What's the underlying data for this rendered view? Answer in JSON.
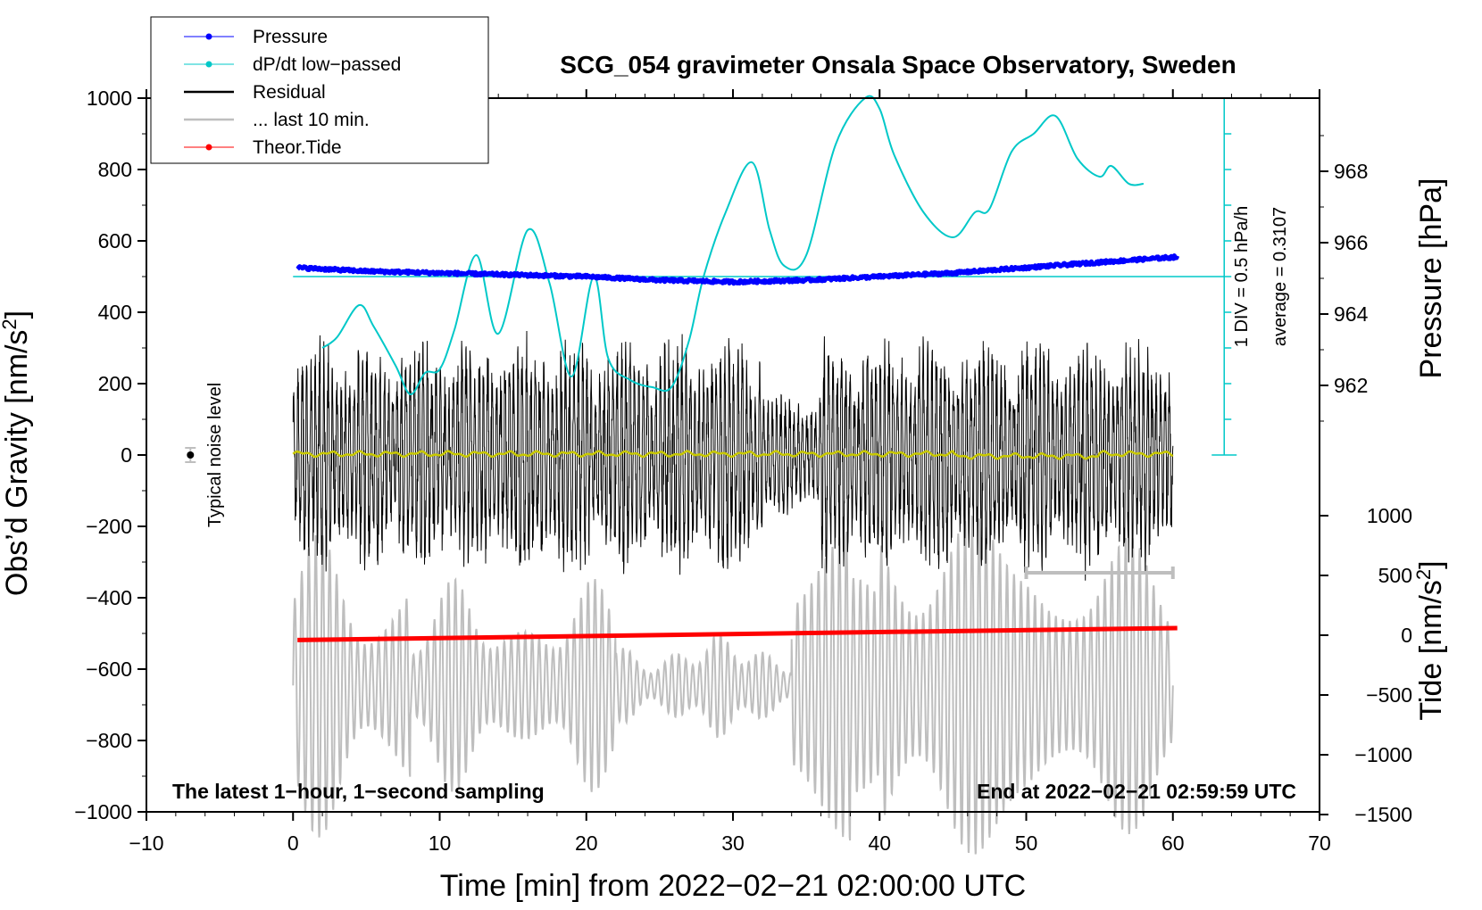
{
  "chart_data": {
    "type": "line",
    "title": "SCG_054 gravimeter Onsala Space Observatory, Sweden",
    "xlabel": "Time [min] from 2022−02−21 02:00:00 UTC",
    "ylabel_left": "Obs’d Gravity [nm/s2]",
    "ylabel_left_main": "Obs’d Gravity [nm/s",
    "ylabel_left_sup": "2",
    "ylabel_left_close": "]",
    "ylabel_right_top": "Pressure [hPa]",
    "ylabel_right_bottom": "Tide [nm/s2]",
    "ylabel_right_bottom_main": "Tide [nm/s",
    "ylabel_right_bottom_sup": "2",
    "ylabel_right_bottom_close": "]",
    "xlim": [
      -10,
      70
    ],
    "ylim_left": [
      -1000,
      1000
    ],
    "xticks": [
      -10,
      0,
      10,
      20,
      30,
      40,
      50,
      60,
      70
    ],
    "xtick_labels": [
      "−10",
      "0",
      "10",
      "20",
      "30",
      "40",
      "50",
      "60",
      "70"
    ],
    "yticks_left": [
      -1000,
      -800,
      -600,
      -400,
      -200,
      0,
      200,
      400,
      600,
      800,
      1000
    ],
    "ytick_labels_left": [
      "−1000",
      "−800",
      "−600",
      "−400",
      "−200",
      "0",
      "200",
      "400",
      "600",
      "800",
      "1000"
    ],
    "pressure_axis": {
      "ticks": [
        962,
        964,
        966,
        968
      ],
      "tick_labels": [
        "962",
        "964",
        "966",
        "968"
      ],
      "range": [
        961.0,
        970.0
      ]
    },
    "tide_axis": {
      "ticks": [
        -1500,
        -1000,
        -500,
        0,
        500,
        1000
      ],
      "tick_labels": [
        "−1500",
        "−1000",
        "−500",
        "0",
        "500",
        "1000"
      ],
      "range": [
        -1500,
        1500
      ]
    },
    "legend": [
      {
        "label": "Pressure",
        "color": "#0000ff",
        "marker": true
      },
      {
        "label": "dP/dt low−passed",
        "color": "#00c8c8",
        "marker": true
      },
      {
        "label": "Residual",
        "color": "#000000",
        "marker": false
      },
      {
        "label": "... last 10 min.",
        "color": "#bebebe",
        "marker": false
      },
      {
        "label": "Theor.Tide",
        "color": "#ff0000",
        "marker": true
      }
    ],
    "legend_position": "top-left",
    "annotations": {
      "bottom_left": "The latest 1−hour, 1−second sampling",
      "bottom_right": "End at 2022−02−21 02:59:59 UTC",
      "noise_label": "Typical noise level",
      "div_label": "1 DIV = 0.5 hPa/h",
      "average_label": "average = 0.3107"
    },
    "series": [
      {
        "name": "Pressure",
        "axis": "pressure",
        "color": "#0000ff",
        "x": [
          0.3,
          5,
          10,
          15,
          20,
          25,
          30,
          35,
          40,
          45,
          50,
          55,
          60.3
        ],
        "y": [
          965.3,
          965.2,
          965.15,
          965.1,
          965.05,
          964.95,
          964.9,
          964.95,
          965.05,
          965.15,
          965.3,
          965.45,
          965.6
        ]
      },
      {
        "name": "dP/dt low−passed",
        "axis": "left",
        "color": "#00c8c8",
        "x": [
          2.0,
          3.0,
          4.5,
          5.5,
          7.0,
          8.0,
          9.0,
          10.0,
          11.0,
          12.5,
          14.0,
          16.0,
          17.5,
          19.0,
          20.5,
          21.5,
          23.0,
          24.5,
          25.8,
          27.0,
          28.0,
          29.5,
          31.3,
          32.5,
          33.5,
          35.0,
          37.0,
          39.0,
          40.0,
          41.0,
          43.0,
          45.0,
          46.5,
          47.5,
          49.0,
          50.5,
          52.0,
          53.5,
          55.0,
          55.8,
          57.0,
          58.0
        ],
        "y": [
          300,
          330,
          420,
          360,
          250,
          170,
          230,
          240,
          350,
          560,
          340,
          630,
          480,
          220,
          500,
          270,
          210,
          190,
          190,
          320,
          500,
          680,
          820,
          630,
          530,
          560,
          870,
          1000,
          970,
          840,
          680,
          610,
          680,
          690,
          850,
          900,
          950,
          830,
          780,
          810,
          760,
          760
        ]
      },
      {
        "name": "Residual",
        "axis": "left",
        "color": "#000000",
        "x_range": [
          0,
          60
        ],
        "envelope_nm_s2": [
          250,
          450
        ]
      },
      {
        "name": "Residual low−passed",
        "axis": "left",
        "color": "#c8c800",
        "x_range": [
          0,
          60
        ],
        "y": [
          0
        ]
      },
      {
        "name": "... last 10 min.",
        "axis": "tide",
        "color": "#bebebe",
        "x_range": [
          0,
          60
        ],
        "envelope_nm_s2": [
          500,
          1550
        ]
      },
      {
        "name": "Theor.Tide",
        "axis": "tide",
        "color": "#ff0000",
        "x": [
          0.3,
          60.3
        ],
        "y": [
          -40,
          60
        ]
      }
    ],
    "reference_lines": [
      {
        "name": "dp-dt-zero-line",
        "axis": "left",
        "y": 500,
        "x_range": [
          0,
          63.5
        ],
        "color": "#00c8c8"
      }
    ],
    "noise_bar": {
      "x": -7,
      "y": 0,
      "err": 20
    },
    "ten_min_bar": {
      "x_range": [
        50,
        60
      ],
      "y": -330
    },
    "dpdt_scale": {
      "x": 63.5,
      "y_range": [
        0,
        1000
      ],
      "divisions": 10
    }
  }
}
